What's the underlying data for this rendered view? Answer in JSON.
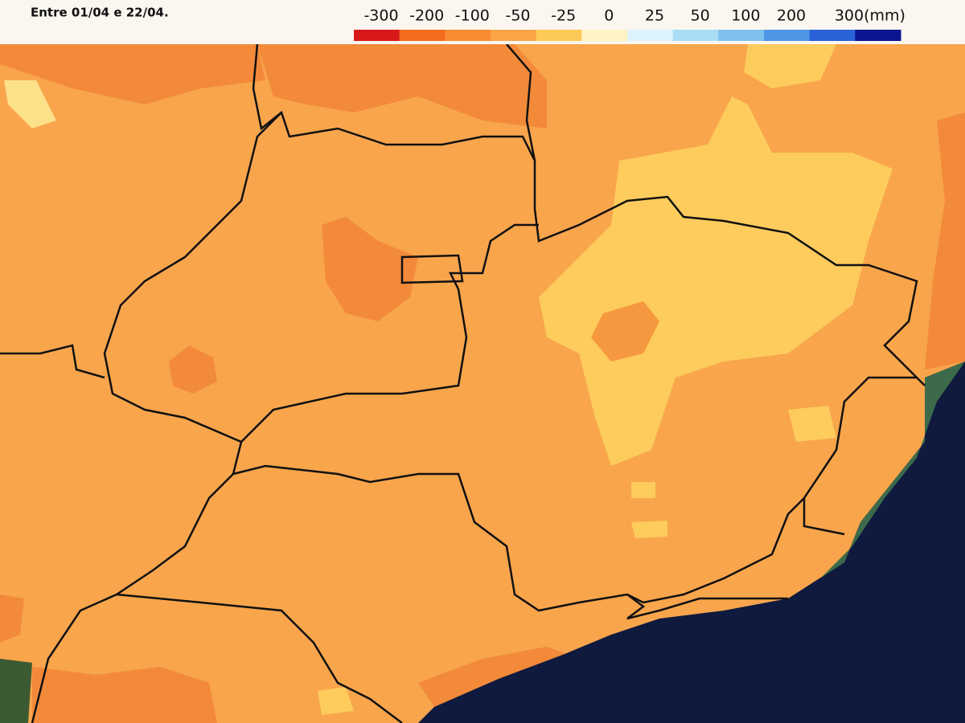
{
  "header": {
    "period": "Entre 01/04 e 22/04."
  },
  "legend": {
    "labels": [
      "-300",
      "-200",
      "-100",
      "-50",
      "-25",
      "0",
      "25",
      "50",
      "100",
      "200",
      "300(mm)"
    ],
    "colors": [
      "#d7191c",
      "#f46d1e",
      "#f98b32",
      "#fba448",
      "#fdca58",
      "#fff3c4",
      "#ddf3fb",
      "#a9ddf5",
      "#7fc1ee",
      "#4d97e6",
      "#2a62d8",
      "#0c1590"
    ]
  }
}
